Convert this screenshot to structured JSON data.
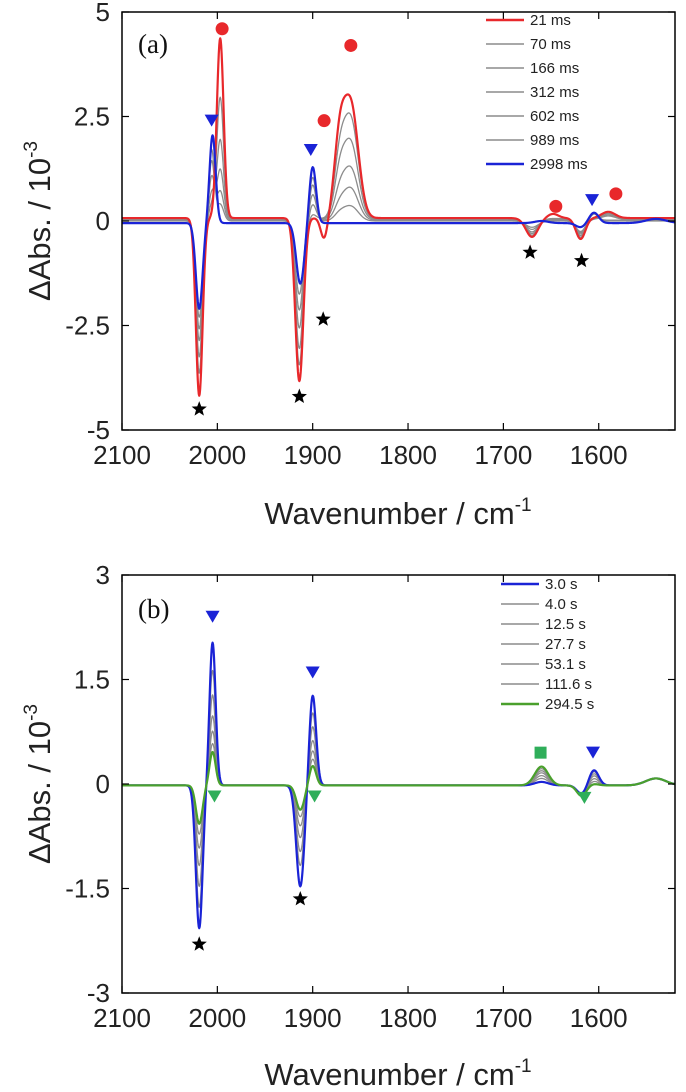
{
  "chart_data": [
    {
      "type": "line",
      "panel_label": "(a)",
      "xlabel": "Wavenumber / cm",
      "xlabel_sup": "-1",
      "ylabel": "ΔAbs. / 10",
      "ylabel_sup": "-3",
      "xlim": [
        2100,
        1520
      ],
      "ylim": [
        -5,
        5
      ],
      "xticks": [
        2100,
        2000,
        1900,
        1800,
        1700,
        1600
      ],
      "yticks": [
        -5,
        -2.5,
        0,
        2.5,
        5
      ],
      "ytick_labels": [
        "-5",
        "-2.5",
        "0",
        "2.5",
        "5"
      ],
      "series": [
        {
          "name": "21 ms",
          "color": "#e8282b",
          "base": 0.07,
          "peaks": [
            [
              2019,
              -4.25,
              5
            ],
            [
              1997,
              4.3,
              5
            ],
            [
              1914,
              -3.9,
              6
            ],
            [
              1888,
              -0.5,
              5
            ],
            [
              1860,
              2.7,
              11
            ],
            [
              1872,
              1.6,
              8
            ],
            [
              1670,
              -0.45,
              9
            ],
            [
              1648,
              0.1,
              8
            ],
            [
              1619,
              -0.5,
              7
            ],
            [
              1590,
              0.15,
              10
            ]
          ]
        },
        {
          "name": "70 ms",
          "color": "#8c8c8c",
          "base": 0.06,
          "peaks": [
            [
              2019,
              -3.7,
              5
            ],
            [
              1997,
              2.9,
              5
            ],
            [
              2006,
              0.3,
              4
            ],
            [
              1914,
              -3.5,
              6
            ],
            [
              1900,
              0.1,
              5
            ],
            [
              1860,
              2.35,
              11
            ],
            [
              1872,
              1.2,
              8
            ],
            [
              1670,
              -0.4,
              9
            ],
            [
              1619,
              -0.45,
              7
            ],
            [
              1590,
              0.12,
              10
            ]
          ]
        },
        {
          "name": "166 ms",
          "color": "#8c8c8c",
          "base": 0.05,
          "peaks": [
            [
              2019,
              -3.3,
              5
            ],
            [
              1997,
              1.9,
              5
            ],
            [
              2006,
              0.6,
              4
            ],
            [
              1914,
              -3.1,
              6
            ],
            [
              1900,
              0.35,
              5
            ],
            [
              1860,
              1.8,
              11
            ],
            [
              1872,
              0.9,
              8
            ],
            [
              1670,
              -0.35,
              9
            ],
            [
              1619,
              -0.4,
              7
            ],
            [
              1590,
              0.1,
              10
            ]
          ]
        },
        {
          "name": "312 ms",
          "color": "#8c8c8c",
          "base": 0.04,
          "peaks": [
            [
              2019,
              -2.9,
              5
            ],
            [
              1997,
              1.2,
              5
            ],
            [
              2006,
              1.0,
              4
            ],
            [
              1914,
              -2.6,
              6
            ],
            [
              1900,
              0.6,
              5
            ],
            [
              1860,
              1.2,
              11
            ],
            [
              1872,
              0.55,
              8
            ],
            [
              1670,
              -0.3,
              9
            ],
            [
              1619,
              -0.35,
              7
            ],
            [
              1590,
              0.08,
              10
            ]
          ]
        },
        {
          "name": "602 ms",
          "color": "#8c8c8c",
          "base": 0.02,
          "peaks": [
            [
              2019,
              -2.6,
              5
            ],
            [
              1997,
              0.7,
              5
            ],
            [
              2006,
              1.4,
              4
            ],
            [
              1914,
              -2.15,
              6
            ],
            [
              1900,
              0.85,
              5
            ],
            [
              1860,
              0.75,
              11
            ],
            [
              1872,
              0.3,
              8
            ],
            [
              1670,
              -0.22,
              9
            ],
            [
              1619,
              -0.3,
              7
            ],
            [
              1605,
              0.15,
              6
            ]
          ]
        },
        {
          "name": "989 ms",
          "color": "#8c8c8c",
          "base": 0.0,
          "peaks": [
            [
              2019,
              -2.3,
              5
            ],
            [
              1997,
              0.4,
              5
            ],
            [
              2006,
              1.7,
              4
            ],
            [
              1914,
              -1.75,
              6
            ],
            [
              1900,
              1.05,
              5
            ],
            [
              1860,
              0.35,
              11
            ],
            [
              1872,
              0.15,
              8
            ],
            [
              1670,
              -0.15,
              9
            ],
            [
              1619,
              -0.25,
              7
            ],
            [
              1605,
              0.2,
              6
            ]
          ]
        },
        {
          "name": "2998 ms",
          "color": "#1a23d6",
          "base": -0.05,
          "peaks": [
            [
              2019,
              -2.05,
              5
            ],
            [
              2005,
              2.1,
              4.5
            ],
            [
              1913,
              -1.45,
              6
            ],
            [
              1900,
              1.35,
              5
            ],
            [
              1660,
              0.05,
              10
            ],
            [
              1619,
              -0.1,
              7
            ],
            [
              1605,
              0.25,
              7
            ],
            [
              1540,
              0.1,
              15
            ]
          ]
        }
      ],
      "markers": [
        {
          "shape": "star",
          "color": "#000000",
          "x": 2019,
          "y": -4.5
        },
        {
          "shape": "star",
          "color": "#000000",
          "x": 1914,
          "y": -4.2
        },
        {
          "shape": "star",
          "color": "#000000",
          "x": 1889,
          "y": -2.35
        },
        {
          "shape": "star",
          "color": "#000000",
          "x": 1672,
          "y": -0.75
        },
        {
          "shape": "star",
          "color": "#000000",
          "x": 1618,
          "y": -0.95
        },
        {
          "shape": "circle",
          "color": "#e8282b",
          "x": 1995,
          "y": 4.6
        },
        {
          "shape": "circle",
          "color": "#e8282b",
          "x": 1888,
          "y": 2.4
        },
        {
          "shape": "circle",
          "color": "#e8282b",
          "x": 1860,
          "y": 4.2
        },
        {
          "shape": "circle",
          "color": "#e8282b",
          "x": 1645,
          "y": 0.35
        },
        {
          "shape": "circle",
          "color": "#e8282b",
          "x": 1582,
          "y": 0.65
        },
        {
          "shape": "triangle-down",
          "color": "#1a23d6",
          "x": 2006,
          "y": 2.4
        },
        {
          "shape": "triangle-down",
          "color": "#1a23d6",
          "x": 1902,
          "y": 1.7
        },
        {
          "shape": "triangle-down",
          "color": "#1a23d6",
          "x": 1607,
          "y": 0.5
        }
      ]
    },
    {
      "type": "line",
      "panel_label": "(b)",
      "xlabel": "Wavenumber / cm",
      "xlabel_sup": "-1",
      "ylabel": "ΔAbs. / 10",
      "ylabel_sup": "-3",
      "xlim": [
        2100,
        1520
      ],
      "ylim": [
        -3,
        3
      ],
      "xticks": [
        2100,
        2000,
        1900,
        1800,
        1700,
        1600
      ],
      "yticks": [
        -3,
        -1.5,
        0,
        1.5,
        3
      ],
      "ytick_labels": [
        "-3",
        "-1.5",
        "0",
        "1.5",
        "3"
      ],
      "series": [
        {
          "name": "3.0 s",
          "color": "#1a23d6",
          "base": -0.02,
          "peaks": [
            [
              2019,
              -2.05,
              5
            ],
            [
              2005,
              2.05,
              4.5
            ],
            [
              1913,
              -1.45,
              6
            ],
            [
              1900,
              1.3,
              5
            ],
            [
              1660,
              0.05,
              10
            ],
            [
              1618,
              -0.12,
              7
            ],
            [
              1605,
              0.22,
              7
            ],
            [
              1540,
              0.1,
              15
            ]
          ]
        },
        {
          "name": "4.0 s",
          "color": "#8c8c8c",
          "base": -0.02,
          "peaks": [
            [
              2019,
              -1.75,
              5
            ],
            [
              2005,
              1.65,
              4.5
            ],
            [
              1913,
              -1.15,
              6
            ],
            [
              1900,
              1.05,
              5
            ],
            [
              1660,
              0.1,
              10
            ],
            [
              1618,
              -0.12,
              7
            ],
            [
              1605,
              0.2,
              7
            ],
            [
              1540,
              0.1,
              15
            ]
          ]
        },
        {
          "name": "12.5 s",
          "color": "#8c8c8c",
          "base": -0.02,
          "peaks": [
            [
              2019,
              -1.45,
              5
            ],
            [
              2005,
              1.3,
              4.5
            ],
            [
              1913,
              -0.95,
              6
            ],
            [
              1900,
              0.85,
              5
            ],
            [
              1660,
              0.14,
              10
            ],
            [
              1618,
              -0.13,
              7
            ],
            [
              1605,
              0.17,
              7
            ],
            [
              1540,
              0.1,
              15
            ]
          ]
        },
        {
          "name": "27.7 s",
          "color": "#8c8c8c",
          "base": -0.02,
          "peaks": [
            [
              2019,
              -1.15,
              5
            ],
            [
              2005,
              1.0,
              4.5
            ],
            [
              1913,
              -0.75,
              6
            ],
            [
              1900,
              0.65,
              5
            ],
            [
              1660,
              0.18,
              10
            ],
            [
              1618,
              -0.13,
              7
            ],
            [
              1605,
              0.14,
              7
            ],
            [
              1540,
              0.1,
              15
            ]
          ]
        },
        {
          "name": "53.1 s",
          "color": "#8c8c8c",
          "base": -0.02,
          "peaks": [
            [
              2019,
              -0.9,
              5
            ],
            [
              2005,
              0.78,
              4.5
            ],
            [
              1913,
              -0.58,
              6
            ],
            [
              1900,
              0.5,
              5
            ],
            [
              1660,
              0.21,
              10
            ],
            [
              1618,
              -0.14,
              7
            ],
            [
              1605,
              0.1,
              7
            ],
            [
              1540,
              0.1,
              15
            ]
          ]
        },
        {
          "name": "111.6 s",
          "color": "#8c8c8c",
          "base": -0.02,
          "peaks": [
            [
              2019,
              -0.7,
              5
            ],
            [
              2005,
              0.6,
              4.5
            ],
            [
              1913,
              -0.45,
              6
            ],
            [
              1900,
              0.38,
              5
            ],
            [
              1660,
              0.24,
              10
            ],
            [
              1618,
              -0.14,
              7
            ],
            [
              1605,
              0.06,
              7
            ],
            [
              1540,
              0.1,
              15
            ]
          ]
        },
        {
          "name": "294.5 s",
          "color": "#4aa02c",
          "base": -0.02,
          "peaks": [
            [
              2019,
              -0.55,
              5
            ],
            [
              2005,
              0.48,
              4.5
            ],
            [
              1913,
              -0.35,
              6
            ],
            [
              1900,
              0.28,
              5
            ],
            [
              1660,
              0.27,
              10
            ],
            [
              1618,
              -0.15,
              7
            ],
            [
              1605,
              0.02,
              7
            ],
            [
              1540,
              0.1,
              15
            ]
          ]
        }
      ],
      "markers": [
        {
          "shape": "star",
          "color": "#000000",
          "x": 2019,
          "y": -2.3
        },
        {
          "shape": "star",
          "color": "#000000",
          "x": 1913,
          "y": -1.65
        },
        {
          "shape": "triangle-down",
          "color": "#1a23d6",
          "x": 2005,
          "y": 2.4
        },
        {
          "shape": "triangle-down",
          "color": "#1a23d6",
          "x": 1900,
          "y": 1.6
        },
        {
          "shape": "triangle-down",
          "color": "#1a23d6",
          "x": 1606,
          "y": 0.45
        },
        {
          "shape": "triangle-down",
          "color": "#2fae5a",
          "x": 2003,
          "y": -0.18
        },
        {
          "shape": "triangle-down",
          "color": "#2fae5a",
          "x": 1898,
          "y": -0.18
        },
        {
          "shape": "triangle-down",
          "color": "#2fae5a",
          "x": 1615,
          "y": -0.2
        },
        {
          "shape": "square",
          "color": "#2fae5a",
          "x": 1661,
          "y": 0.45
        }
      ]
    }
  ]
}
